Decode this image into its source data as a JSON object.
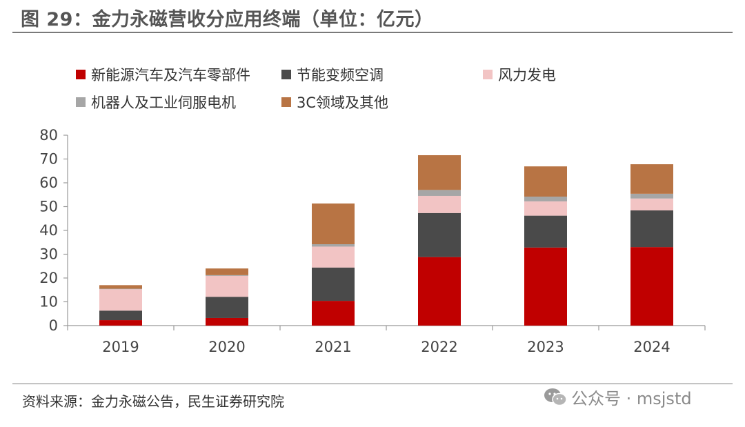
{
  "header": {
    "title": "图 29：金力永磁营收分应用终端（单位：亿元）"
  },
  "footer": {
    "source": "资料来源：金力永磁公告，民生证券研究院"
  },
  "watermark": {
    "text": "公众号 · msjstd",
    "icon": "wechat-icon"
  },
  "colors": {
    "nev": "#c00000",
    "hvac": "#4a4a4a",
    "wind": "#f2c4c4",
    "robot": "#a6a6a6",
    "other": "#b87444"
  },
  "chart_data": {
    "type": "bar",
    "stacked": true,
    "categories": [
      "2019",
      "2020",
      "2021",
      "2022",
      "2023",
      "2024"
    ],
    "ylim": [
      0,
      80
    ],
    "yticks": [
      0,
      10,
      20,
      30,
      40,
      50,
      60,
      70,
      80
    ],
    "legend_position": "top",
    "grid": false,
    "series": [
      {
        "name": "新能源汽车及汽车零部件",
        "color_key": "nev",
        "values": [
          2.3,
          3.2,
          10.4,
          28.8,
          32.8,
          33.0
        ]
      },
      {
        "name": "节能变频空调",
        "color_key": "hvac",
        "values": [
          4.0,
          8.9,
          14.0,
          18.5,
          13.4,
          15.4
        ]
      },
      {
        "name": "风力发电",
        "color_key": "wind",
        "values": [
          9.0,
          8.8,
          8.8,
          7.2,
          6.0,
          5.0
        ]
      },
      {
        "name": "机器人及工业伺服电机",
        "color_key": "robot",
        "values": [
          0.2,
          0.3,
          1.0,
          2.5,
          2.0,
          2.0
        ]
      },
      {
        "name": "3C领域及其他",
        "color_key": "other",
        "values": [
          1.5,
          2.8,
          17.1,
          14.6,
          12.7,
          12.4
        ]
      }
    ]
  }
}
